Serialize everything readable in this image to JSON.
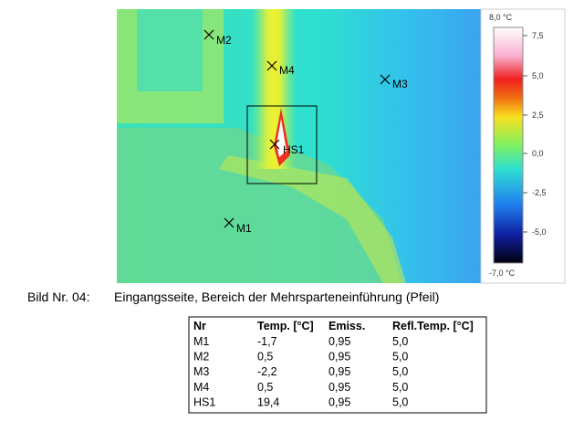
{
  "image": {
    "markers": [
      {
        "label": "M2"
      },
      {
        "label": "M4"
      },
      {
        "label": "M3"
      },
      {
        "label": "HS1"
      },
      {
        "label": "M1"
      }
    ]
  },
  "scale": {
    "max": "8,0 °C",
    "min": "-7,0 °C",
    "ticks": [
      "7,5",
      "5,0",
      "2,5",
      "0,0",
      "-2,5",
      "-5,0"
    ]
  },
  "caption": {
    "number": "Bild Nr. 04:",
    "text": "Eingangsseite, Bereich der Mehrsparteneinführung (Pfeil)"
  },
  "table": {
    "header": [
      "Nr",
      "Temp. [°C]",
      "Emiss.",
      "Refl.Temp. [°C]"
    ],
    "rows": [
      [
        "M1",
        "-1,7",
        "0,95",
        "5,0"
      ],
      [
        "M2",
        "0,5",
        "0,95",
        "5,0"
      ],
      [
        "M3",
        "-2,2",
        "0,95",
        "5,0"
      ],
      [
        "M4",
        "0,5",
        "0,95",
        "5,0"
      ],
      [
        "HS1",
        "19,4",
        "0,95",
        "5,0"
      ]
    ]
  }
}
